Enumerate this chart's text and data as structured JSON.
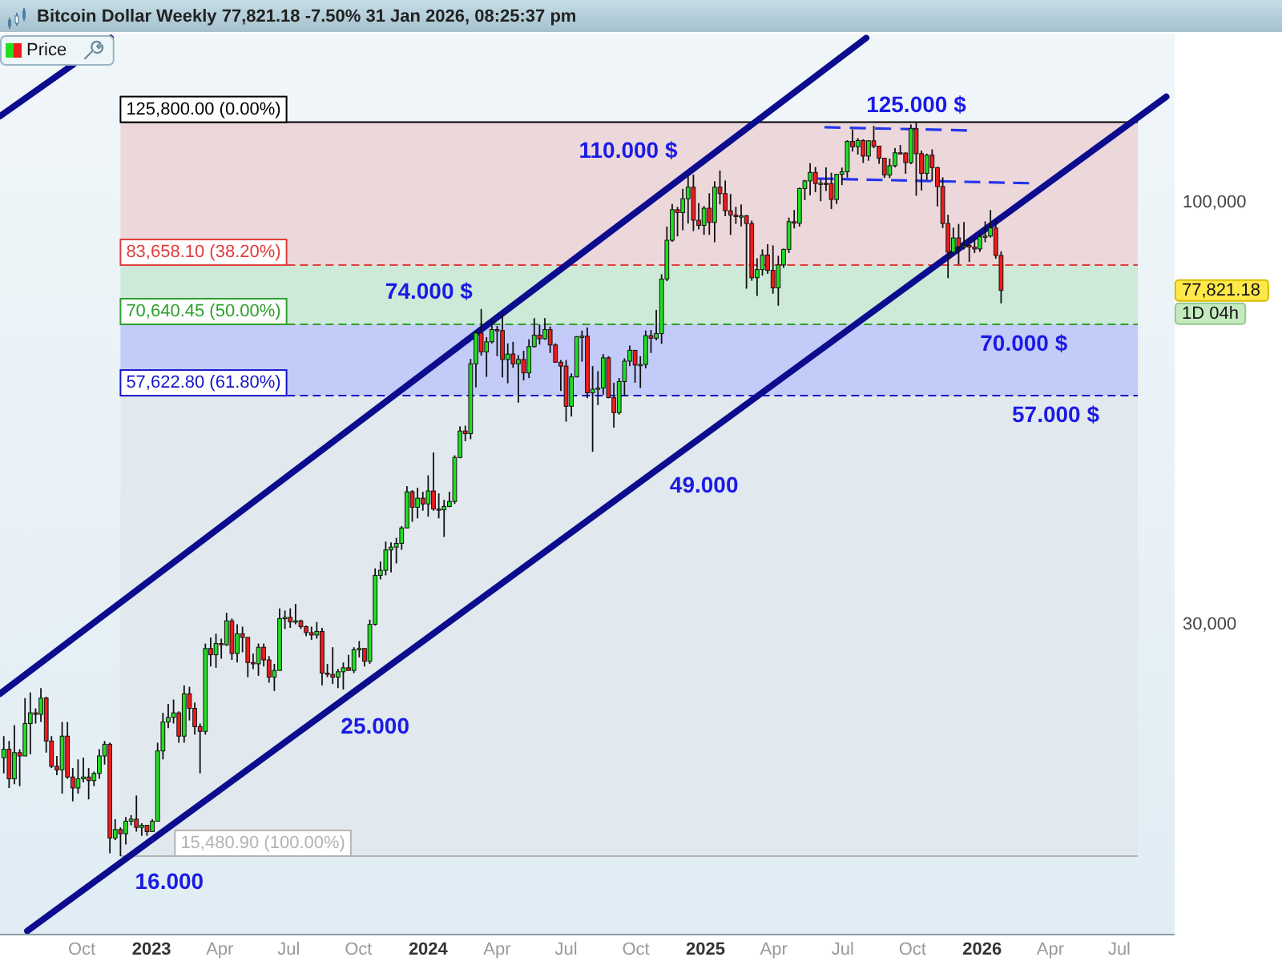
{
  "chart_data": {
    "type": "candlestick",
    "title": "Bitcoin Dollar Weekly 77,821.18 -7.50% 31 Jan 2026, 08:25:37 pm",
    "xlim": [
      "2022-06-15",
      "2026-09-12"
    ],
    "ylim": [
      12400,
      162000
    ],
    "log": "y",
    "legend": "top left",
    "xticks": [
      {
        "value": "2022-10-01",
        "label": "Oct"
      },
      {
        "value": "2023-01-01",
        "label": "2023"
      },
      {
        "value": "2023-04-01",
        "label": "Apr"
      },
      {
        "value": "2023-07-01",
        "label": "Jul"
      },
      {
        "value": "2023-10-01",
        "label": "Oct"
      },
      {
        "value": "2024-01-01",
        "label": "2024"
      },
      {
        "value": "2024-04-01",
        "label": "Apr"
      },
      {
        "value": "2024-07-01",
        "label": "Jul"
      },
      {
        "value": "2024-10-01",
        "label": "Oct"
      },
      {
        "value": "2025-01-01",
        "label": "2025"
      },
      {
        "value": "2025-04-01",
        "label": "Apr"
      },
      {
        "value": "2025-07-01",
        "label": "Jul"
      },
      {
        "value": "2025-10-01",
        "label": "Oct"
      },
      {
        "value": "2026-01-01",
        "label": "2026"
      },
      {
        "value": "2026-04-01",
        "label": "Apr"
      },
      {
        "value": "2026-07-01",
        "label": "Jul"
      }
    ],
    "yticks": [
      {
        "value": 100000,
        "label": "100,000"
      },
      {
        "value": 30000,
        "label": "30,000"
      }
    ],
    "bands": [
      {
        "axis": "y",
        "from": 83658.1,
        "to": 125800,
        "color": "#ecd7db"
      },
      {
        "axis": "y",
        "from": 70640.45,
        "to": 83658.1,
        "color": "#cde9d7"
      },
      {
        "axis": "y",
        "from": 57622.8,
        "to": 70640.45,
        "color": "#c3cbf8"
      },
      {
        "axis": "y",
        "from": 15480.9,
        "to": 57622.8,
        "color": "#e1e8ee"
      }
    ],
    "ref_lines": [
      {
        "axis": "y",
        "value": 125800,
        "label": "125,800.00 (0.00%)",
        "color": "#000000",
        "line_style": "solid"
      },
      {
        "axis": "y",
        "value": 83658.1,
        "label": "83,658.10 (38.20%)",
        "color": "#e03c3c",
        "line_style": "dashed"
      },
      {
        "axis": "y",
        "value": 70640.45,
        "label": "70,640.45 (50.00%)",
        "color": "#2ca02c",
        "line_style": "dashed"
      },
      {
        "axis": "y",
        "value": 57622.8,
        "label": "57,622.80 (61.80%)",
        "color": "#1515c8",
        "line_style": "dashed"
      },
      {
        "axis": "y",
        "value": 15480.9,
        "label": "15,480.90 (100.00%)",
        "color": "#b4b4b4",
        "line_style": "solid"
      }
    ],
    "annotations": [
      {
        "text": "125.000 $",
        "x": "2025-10-06",
        "y": 125800
      },
      {
        "text": "110.000 $",
        "x": "2024-12-16",
        "y": 108300
      },
      {
        "text": "74.000 $",
        "x": "2024-03-11",
        "y": 73800
      },
      {
        "text": "70.000 $",
        "x": "2026-02-25",
        "y": 70640.45
      },
      {
        "text": "57.000 $",
        "x": "2026-04-08",
        "y": 57622.8
      },
      {
        "text": "49.000",
        "x": "2024-11-04",
        "y": 47100
      },
      {
        "text": "25.000",
        "x": "2023-08-28",
        "y": 23670
      },
      {
        "text": "16.000",
        "x": "2022-11-21",
        "y": 15480.9
      },
      "77,821.18",
      "1D 04h"
    ],
    "series": [
      {
        "type": "candlestick",
        "name": "Price",
        "x": [
          "2022-06-20",
          "2022-06-27",
          "2022-07-04",
          "2022-07-11",
          "2022-07-18",
          "2022-07-25",
          "2022-08-01",
          "2022-08-08",
          "2022-08-15",
          "2022-08-22",
          "2022-08-29",
          "2022-09-05",
          "2022-09-12",
          "2022-09-19",
          "2022-09-26",
          "2022-10-03",
          "2022-10-10",
          "2022-10-17",
          "2022-10-24",
          "2022-10-31",
          "2022-11-07",
          "2022-11-14",
          "2022-11-21",
          "2022-11-28",
          "2022-12-05",
          "2022-12-12",
          "2022-12-19",
          "2022-12-26",
          "2023-01-02",
          "2023-01-09",
          "2023-01-16",
          "2023-01-23",
          "2023-01-30",
          "2023-02-06",
          "2023-02-13",
          "2023-02-20",
          "2023-02-27",
          "2023-03-06",
          "2023-03-13",
          "2023-03-20",
          "2023-03-27",
          "2023-04-03",
          "2023-04-10",
          "2023-04-17",
          "2023-04-24",
          "2023-05-01",
          "2023-05-08",
          "2023-05-15",
          "2023-05-22",
          "2023-05-29",
          "2023-06-05",
          "2023-06-12",
          "2023-06-19",
          "2023-06-26",
          "2023-07-03",
          "2023-07-10",
          "2023-07-17",
          "2023-07-24",
          "2023-07-31",
          "2023-08-07",
          "2023-08-14",
          "2023-08-21",
          "2023-08-28",
          "2023-09-04",
          "2023-09-11",
          "2023-09-18",
          "2023-09-25",
          "2023-10-02",
          "2023-10-09",
          "2023-10-16",
          "2023-10-23",
          "2023-10-30",
          "2023-11-06",
          "2023-11-13",
          "2023-11-20",
          "2023-11-27",
          "2023-12-04",
          "2023-12-11",
          "2023-12-18",
          "2023-12-25",
          "2024-01-01",
          "2024-01-08",
          "2024-01-15",
          "2024-01-22",
          "2024-01-29",
          "2024-02-05",
          "2024-02-12",
          "2024-02-19",
          "2024-02-26",
          "2024-03-04",
          "2024-03-11",
          "2024-03-18",
          "2024-03-25",
          "2024-04-01",
          "2024-04-08",
          "2024-04-15",
          "2024-04-22",
          "2024-04-29",
          "2024-05-06",
          "2024-05-13",
          "2024-05-20",
          "2024-05-27",
          "2024-06-03",
          "2024-06-10",
          "2024-06-17",
          "2024-06-24",
          "2024-07-01",
          "2024-07-08",
          "2024-07-15",
          "2024-07-22",
          "2024-07-29",
          "2024-08-05",
          "2024-08-12",
          "2024-08-19",
          "2024-08-26",
          "2024-09-02",
          "2024-09-09",
          "2024-09-16",
          "2024-09-23",
          "2024-09-30",
          "2024-10-07",
          "2024-10-14",
          "2024-10-21",
          "2024-10-28",
          "2024-11-04",
          "2024-11-11",
          "2024-11-18",
          "2024-11-25",
          "2024-12-02",
          "2024-12-09",
          "2024-12-16",
          "2024-12-23",
          "2024-12-30",
          "2025-01-06",
          "2025-01-13",
          "2025-01-20",
          "2025-01-27",
          "2025-02-03",
          "2025-02-10",
          "2025-02-17",
          "2025-02-24",
          "2025-03-03",
          "2025-03-10",
          "2025-03-17",
          "2025-03-24",
          "2025-03-31",
          "2025-04-07",
          "2025-04-14",
          "2025-04-21",
          "2025-04-28",
          "2025-05-05",
          "2025-05-12",
          "2025-05-19",
          "2025-05-26",
          "2025-06-02",
          "2025-06-09",
          "2025-06-16",
          "2025-06-23",
          "2025-06-30",
          "2025-07-07",
          "2025-07-14",
          "2025-07-21",
          "2025-07-28",
          "2025-08-04",
          "2025-08-11",
          "2025-08-18",
          "2025-08-25",
          "2025-09-01",
          "2025-09-08",
          "2025-09-15",
          "2025-09-22",
          "2025-09-29",
          "2025-10-06",
          "2025-10-13",
          "2025-10-20",
          "2025-10-27",
          "2025-11-03",
          "2025-11-10",
          "2025-11-17",
          "2025-11-24",
          "2025-12-01",
          "2025-12-08",
          "2025-12-15",
          "2025-12-22",
          "2025-12-29",
          "2026-01-05",
          "2026-01-12",
          "2026-01-19",
          "2026-01-26"
        ],
        "ohlc": [
          [
            20500,
            21800,
            19600,
            21000
          ],
          [
            21000,
            21500,
            18800,
            19300
          ],
          [
            19300,
            22500,
            19000,
            20800
          ],
          [
            20800,
            21000,
            18900,
            20600
          ],
          [
            20600,
            24300,
            20600,
            22600
          ],
          [
            22600,
            24700,
            20700,
            23300
          ],
          [
            23300,
            23600,
            22600,
            23200
          ],
          [
            23200,
            25000,
            22700,
            24300
          ],
          [
            24300,
            24400,
            20800,
            21500
          ],
          [
            21500,
            21800,
            19900,
            20000
          ],
          [
            20000,
            20600,
            19500,
            19800
          ],
          [
            19800,
            22700,
            18500,
            21800
          ],
          [
            21800,
            22700,
            19300,
            19400
          ],
          [
            19400,
            19900,
            18100,
            18800
          ],
          [
            18800,
            20400,
            18500,
            19300
          ],
          [
            19300,
            20500,
            19100,
            19400
          ],
          [
            19400,
            19900,
            18200,
            19200
          ],
          [
            19200,
            19700,
            18900,
            19600
          ],
          [
            19600,
            21000,
            19300,
            20600
          ],
          [
            20600,
            21500,
            20100,
            21300
          ],
          [
            21300,
            21400,
            15600,
            16300
          ],
          [
            16300,
            17200,
            16200,
            16700
          ],
          [
            16700,
            16800,
            15480.9,
            16500
          ],
          [
            16500,
            17300,
            16000,
            17100
          ],
          [
            17100,
            17400,
            16900,
            17200
          ],
          [
            17200,
            18400,
            16600,
            16800
          ],
          [
            16800,
            17000,
            16400,
            16900
          ],
          [
            16900,
            16900,
            16400,
            16600
          ],
          [
            16600,
            17200,
            16600,
            17100
          ],
          [
            17100,
            21400,
            17100,
            20900
          ],
          [
            20900,
            23300,
            20400,
            22700
          ],
          [
            22700,
            23900,
            22300,
            23000
          ],
          [
            23000,
            24200,
            22600,
            23300
          ],
          [
            23300,
            23400,
            21400,
            21800
          ],
          [
            21800,
            25200,
            21400,
            24600
          ],
          [
            24600,
            25100,
            22800,
            23600
          ],
          [
            23600,
            24000,
            21900,
            22400
          ],
          [
            22400,
            22600,
            19600,
            22100
          ],
          [
            22100,
            28400,
            21900,
            28000
          ],
          [
            28000,
            28900,
            26600,
            27500
          ],
          [
            27500,
            29200,
            26500,
            28400
          ],
          [
            28400,
            28800,
            27200,
            28300
          ],
          [
            28300,
            31000,
            28200,
            30300
          ],
          [
            30300,
            30500,
            27100,
            27600
          ],
          [
            27600,
            30000,
            26900,
            29200
          ],
          [
            29200,
            29800,
            27700,
            28900
          ],
          [
            28900,
            28900,
            25800,
            26900
          ],
          [
            26900,
            27600,
            26400,
            26800
          ],
          [
            26800,
            28400,
            25900,
            28100
          ],
          [
            28100,
            28400,
            26600,
            27100
          ],
          [
            27100,
            27400,
            25400,
            25800
          ],
          [
            25800,
            26800,
            24800,
            26300
          ],
          [
            26300,
            31400,
            26300,
            30500
          ],
          [
            30500,
            31200,
            29600,
            30600
          ],
          [
            30600,
            31400,
            29700,
            30200
          ],
          [
            30200,
            31800,
            30000,
            30300
          ],
          [
            30300,
            30400,
            29600,
            29800
          ],
          [
            29800,
            29900,
            29000,
            29300
          ],
          [
            29300,
            29800,
            28700,
            29100
          ],
          [
            29100,
            30200,
            28800,
            29400
          ],
          [
            29400,
            29700,
            25200,
            26100
          ],
          [
            26100,
            26800,
            25800,
            26000
          ],
          [
            26000,
            28100,
            25300,
            25800
          ],
          [
            25800,
            26400,
            25000,
            26200
          ],
          [
            26200,
            26900,
            24900,
            26500
          ],
          [
            26500,
            27500,
            26300,
            26300
          ],
          [
            26300,
            28100,
            26100,
            27900
          ],
          [
            27900,
            28600,
            27300,
            28000
          ],
          [
            28000,
            28000,
            26600,
            27000
          ],
          [
            27000,
            30400,
            26800,
            30000
          ],
          [
            30000,
            35200,
            29900,
            34500
          ],
          [
            34500,
            35900,
            34100,
            35000
          ],
          [
            35000,
            38000,
            34500,
            37100
          ],
          [
            37100,
            37900,
            34800,
            37400
          ],
          [
            37400,
            38400,
            35700,
            37800
          ],
          [
            37800,
            39700,
            37100,
            39500
          ],
          [
            39500,
            44500,
            39500,
            43800
          ],
          [
            43800,
            44000,
            40200,
            41900
          ],
          [
            41900,
            44300,
            40600,
            43000
          ],
          [
            43000,
            43800,
            41500,
            42300
          ],
          [
            42300,
            45900,
            40800,
            43900
          ],
          [
            43900,
            49000,
            41500,
            41700
          ],
          [
            41700,
            43600,
            40600,
            41600
          ],
          [
            41600,
            42800,
            38500,
            42000
          ],
          [
            42000,
            43800,
            41900,
            42600
          ],
          [
            42600,
            48600,
            42300,
            48300
          ],
          [
            48300,
            52800,
            48200,
            52100
          ],
          [
            52100,
            52900,
            50600,
            51700
          ],
          [
            51700,
            64000,
            50900,
            63100
          ],
          [
            63100,
            69200,
            59000,
            68900
          ],
          [
            68900,
            73800,
            64600,
            65300
          ],
          [
            65300,
            68100,
            60800,
            67200
          ],
          [
            67200,
            71600,
            66900,
            69600
          ],
          [
            69600,
            70300,
            64500,
            69400
          ],
          [
            69400,
            72700,
            60700,
            63900
          ],
          [
            63900,
            66900,
            59700,
            64900
          ],
          [
            64900,
            67200,
            62400,
            63100
          ],
          [
            63100,
            64700,
            56500,
            63900
          ],
          [
            63900,
            65500,
            60200,
            61500
          ],
          [
            61500,
            67700,
            60600,
            66300
          ],
          [
            66300,
            71900,
            66100,
            68500
          ],
          [
            68500,
            70600,
            66700,
            67800
          ],
          [
            67800,
            71900,
            67600,
            69600
          ],
          [
            69600,
            70200,
            65100,
            66600
          ],
          [
            66600,
            66900,
            63300,
            63400
          ],
          [
            63400,
            63800,
            58400,
            62700
          ],
          [
            62700,
            63800,
            53500,
            55900
          ],
          [
            55900,
            61400,
            54300,
            60800
          ],
          [
            60800,
            68300,
            60700,
            68200
          ],
          [
            68200,
            69400,
            63500,
            68300
          ],
          [
            68300,
            70000,
            57200,
            58100
          ],
          [
            58100,
            62700,
            49100,
            58700
          ],
          [
            58700,
            61800,
            56100,
            58900
          ],
          [
            58900,
            64900,
            57800,
            64200
          ],
          [
            64200,
            64500,
            57200,
            57300
          ],
          [
            57300,
            59800,
            52600,
            54900
          ],
          [
            54900,
            60600,
            54600,
            60000
          ],
          [
            60000,
            64100,
            57500,
            63600
          ],
          [
            63600,
            66500,
            62700,
            65600
          ],
          [
            65600,
            65600,
            59800,
            62900
          ],
          [
            62900,
            64500,
            58900,
            63000
          ],
          [
            63000,
            69400,
            62300,
            68400
          ],
          [
            68400,
            69500,
            65100,
            67900
          ],
          [
            67900,
            73600,
            67500,
            68800
          ],
          [
            68800,
            81500,
            66800,
            80400
          ],
          [
            80400,
            93400,
            79900,
            89800
          ],
          [
            89800,
            99600,
            89400,
            98000
          ],
          [
            98000,
            98800,
            90800,
            97200
          ],
          [
            97200,
            104000,
            92400,
            101100
          ],
          [
            101100,
            107800,
            94200,
            104500
          ],
          [
            104500,
            108300,
            92200,
            95100
          ],
          [
            95100,
            99900,
            92600,
            93700
          ],
          [
            93700,
            99000,
            91200,
            98400
          ],
          [
            98400,
            102700,
            91200,
            94500
          ],
          [
            94500,
            106300,
            89300,
            104500
          ],
          [
            104500,
            109600,
            99500,
            102600
          ],
          [
            102600,
            106500,
            96200,
            97700
          ],
          [
            97700,
            102500,
            91200,
            96500
          ],
          [
            96500,
            98800,
            94100,
            96100
          ],
          [
            96100,
            99500,
            93400,
            96300
          ],
          [
            96300,
            96500,
            78200,
            94200
          ],
          [
            94200,
            95000,
            80000,
            80700
          ],
          [
            80700,
            85300,
            76600,
            82600
          ],
          [
            82600,
            87500,
            81200,
            86100
          ],
          [
            86100,
            88800,
            81600,
            82400
          ],
          [
            82400,
            88500,
            77100,
            78400
          ],
          [
            78400,
            85900,
            74500,
            83700
          ],
          [
            83700,
            87700,
            83000,
            87500
          ],
          [
            87500,
            95800,
            86600,
            94700
          ],
          [
            94700,
            97900,
            92900,
            94300
          ],
          [
            94300,
            104400,
            93400,
            104100
          ],
          [
            104100,
            106700,
            100700,
            106400
          ],
          [
            106400,
            111900,
            102100,
            109000
          ],
          [
            109000,
            110700,
            103000,
            105600
          ],
          [
            105600,
            106800,
            100400,
            105700
          ],
          [
            105700,
            110600,
            103400,
            105600
          ],
          [
            105600,
            108900,
            98200,
            100900
          ],
          [
            100900,
            108500,
            99600,
            108400
          ],
          [
            108400,
            110500,
            105100,
            109200
          ],
          [
            109200,
            119500,
            107400,
            119100
          ],
          [
            119100,
            123200,
            115700,
            117300
          ],
          [
            117300,
            120200,
            114700,
            119400
          ],
          [
            119400,
            119800,
            112000,
            114200
          ],
          [
            114200,
            119500,
            112700,
            119300
          ],
          [
            119300,
            124500,
            116800,
            117500
          ],
          [
            117500,
            117600,
            111700,
            113500
          ],
          [
            113500,
            113700,
            107300,
            108200
          ],
          [
            108200,
            113400,
            107300,
            111100
          ],
          [
            111100,
            116800,
            110600,
            115300
          ],
          [
            115300,
            117900,
            114800,
            115200
          ],
          [
            115200,
            115400,
            108600,
            112100
          ],
          [
            112100,
            125000,
            111600,
            123500
          ],
          [
            123500,
            125800,
            102000,
            115000
          ],
          [
            115000,
            116000,
            103500,
            108700
          ],
          [
            108700,
            115000,
            106700,
            114500
          ],
          [
            114500,
            116400,
            106300,
            110500
          ],
          [
            110500,
            110800,
            98900,
            104700
          ],
          [
            104700,
            107500,
            93000,
            94200
          ],
          [
            94200,
            96600,
            80600,
            86800
          ],
          [
            86800,
            93100,
            86000,
            90400
          ],
          [
            90400,
            94100,
            83800,
            88200
          ],
          [
            88200,
            94600,
            87500,
            88500
          ],
          [
            88500,
            90400,
            84400,
            88100
          ],
          [
            88100,
            90000,
            86600,
            87600
          ],
          [
            87600,
            91500,
            86900,
            90700
          ],
          [
            90700,
            94800,
            89300,
            90900
          ],
          [
            90900,
            97900,
            90500,
            93000
          ],
          [
            93000,
            95500,
            85200,
            86000
          ],
          [
            86000,
            87000,
            75000,
            77821.18
          ]
        ],
        "colors": [
          "#22dd22",
          "#ee1c1c",
          "#22dd22",
          "#ee1c1c",
          "#22dd22",
          "#22dd22",
          "#ee1c1c",
          "#22dd22",
          "#ee1c1c",
          "#ee1c1c",
          "#ee1c1c",
          "#22dd22",
          "#ee1c1c",
          "#ee1c1c",
          "#22dd22",
          "#22dd22",
          "#ee1c1c",
          "#22dd22",
          "#22dd22",
          "#22dd22",
          "#ee1c1c",
          "#22dd22",
          "#ee1c1c",
          "#22dd22",
          "#22dd22",
          "#ee1c1c",
          "#22dd22",
          "#ee1c1c",
          "#22dd22",
          "#22dd22",
          "#22dd22",
          "#22dd22",
          "#22dd22",
          "#ee1c1c",
          "#22dd22",
          "#ee1c1c",
          "#ee1c1c",
          "#ee1c1c",
          "#22dd22",
          "#ee1c1c",
          "#22dd22",
          "#ee1c1c",
          "#22dd22",
          "#ee1c1c",
          "#22dd22",
          "#ee1c1c",
          "#ee1c1c",
          "#ee1c1c",
          "#22dd22",
          "#ee1c1c",
          "#ee1c1c",
          "#22dd22",
          "#22dd22",
          "#22dd22",
          "#ee1c1c",
          "#22dd22",
          "#ee1c1c",
          "#ee1c1c",
          "#ee1c1c",
          "#22dd22",
          "#ee1c1c",
          "#ee1c1c",
          "#ee1c1c",
          "#22dd22",
          "#22dd22",
          "#ee1c1c",
          "#22dd22",
          "#22dd22",
          "#ee1c1c",
          "#22dd22",
          "#22dd22",
          "#22dd22",
          "#22dd22",
          "#22dd22",
          "#22dd22",
          "#22dd22",
          "#22dd22",
          "#ee1c1c",
          "#22dd22",
          "#ee1c1c",
          "#22dd22",
          "#ee1c1c",
          "#ee1c1c",
          "#22dd22",
          "#22dd22",
          "#22dd22",
          "#22dd22",
          "#ee1c1c",
          "#22dd22",
          "#22dd22",
          "#ee1c1c",
          "#22dd22",
          "#22dd22",
          "#ee1c1c",
          "#ee1c1c",
          "#22dd22",
          "#ee1c1c",
          "#22dd22",
          "#ee1c1c",
          "#22dd22",
          "#22dd22",
          "#ee1c1c",
          "#22dd22",
          "#ee1c1c",
          "#ee1c1c",
          "#ee1c1c",
          "#ee1c1c",
          "#22dd22",
          "#22dd22",
          "#22dd22",
          "#ee1c1c",
          "#22dd22",
          "#22dd22",
          "#22dd22",
          "#ee1c1c",
          "#ee1c1c",
          "#22dd22",
          "#22dd22",
          "#22dd22",
          "#ee1c1c",
          "#22dd22",
          "#22dd22",
          "#ee1c1c",
          "#22dd22",
          "#22dd22",
          "#22dd22",
          "#22dd22",
          "#ee1c1c",
          "#22dd22",
          "#22dd22",
          "#ee1c1c",
          "#ee1c1c",
          "#22dd22",
          "#ee1c1c",
          "#22dd22",
          "#ee1c1c",
          "#ee1c1c",
          "#ee1c1c",
          "#ee1c1c",
          "#22dd22",
          "#ee1c1c",
          "#ee1c1c",
          "#22dd22",
          "#22dd22",
          "#ee1c1c",
          "#ee1c1c",
          "#22dd22",
          "#22dd22",
          "#22dd22",
          "#ee1c1c",
          "#22dd22",
          "#22dd22",
          "#22dd22",
          "#ee1c1c",
          "#22dd22",
          "#ee1c1c",
          "#ee1c1c",
          "#22dd22",
          "#22dd22",
          "#22dd22",
          "#ee1c1c",
          "#22dd22",
          "#ee1c1c",
          "#22dd22",
          "#ee1c1c",
          "#ee1c1c",
          "#ee1c1c",
          "#22dd22",
          "#22dd22",
          "#ee1c1c",
          "#ee1c1c",
          "#22dd22",
          "#ee1c1c",
          "#ee1c1c",
          "#22dd22",
          "#ee1c1c",
          "#ee1c1c",
          "#ee1c1c",
          "#ee1c1c",
          "#22dd22",
          "#ee1c1c",
          "#22dd22",
          "#ee1c1c",
          "#ee1c1c",
          "#22dd22",
          "#22dd22",
          "#22dd22",
          "#ee1c1c",
          "#ee1c1c"
        ]
      },
      {
        "type": "line",
        "x": [
          "2022-06-15",
          "2025-08-01"
        ],
        "values": [
          24600,
          160000
        ],
        "color": "#0c0c8e"
      },
      {
        "type": "line",
        "x": [
          "2022-07-21",
          "2023-08-28",
          "2024-11-04",
          "2026-09-01"
        ],
        "values": [
          12500,
          23670,
          47100,
          135300
        ],
        "color": "#0c0c8e"
      },
      {
        "type": "line",
        "x": [
          "2022-06-15",
          "2022-11-08"
        ],
        "values": [
          128000,
          160000
        ],
        "color": "#0c0c8e"
      },
      {
        "type": "line",
        "x": [
          "2025-06-07",
          "2025-12-12"
        ],
        "values": [
          124000,
          122900
        ],
        "color": "#2535ee",
        "line_style": "dashed"
      },
      {
        "type": "line",
        "x": [
          "2025-05-29",
          "2026-03-04"
        ],
        "values": [
          107100,
          105700
        ],
        "color": "#2535ee",
        "line_style": "dashed"
      }
    ]
  }
}
